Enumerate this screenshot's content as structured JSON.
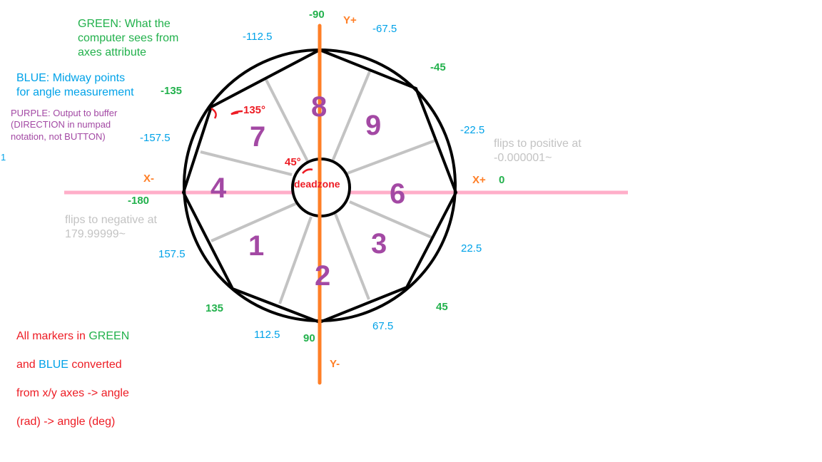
{
  "legend": {
    "green": "GREEN: What the\ncomputer sees from\naxes attribute",
    "blue": "BLUE: Midway points\nfor angle measurement",
    "purple": "PURPLE: Output to buffer\n(DIRECTION in numpad\nnotation, not BUTTON)",
    "stray": "1"
  },
  "flip_notes": {
    "positive": "flips to positive at\n-0.000001~",
    "negative": "flips to negative at\n179.99999~"
  },
  "footnote": {
    "line1_pre": "All markers  in ",
    "green_word": "GREEN",
    "line2_pre": "and ",
    "blue_word": "BLUE",
    "line2_post": " converted",
    "line3": "from x/y axes -> angle",
    "line4": "(rad) -> angle (deg)"
  },
  "axes": {
    "x_plus": "X+",
    "x_minus": "X-",
    "y_plus": "Y+",
    "y_minus": "Y-"
  },
  "green_markers": {
    "m90_top": "-90",
    "m45_top": "-45",
    "zero": "0",
    "p45_bottom": "45",
    "p90_bottom": "90",
    "p135_bottom": "135",
    "m180": "-180",
    "m135_top": "-135"
  },
  "blue_markers": {
    "m112_5": "-112.5",
    "m67_5": "-67.5",
    "m22_5": "-22.5",
    "p22_5": "22.5",
    "p67_5": "67.5",
    "p112_5": "112.5",
    "p157_5": "157.5",
    "m157_5": "-157.5"
  },
  "zones": {
    "n8": "8",
    "n9": "9",
    "n6": "6",
    "n3": "3",
    "n2": "2",
    "n1": "1",
    "n4": "4",
    "n7": "7"
  },
  "annotations": {
    "deadzone": "deadzone",
    "angle_45": "45°",
    "angle_135": "135°"
  },
  "colors": {
    "green": "#22b14c",
    "blue": "#00a2e8",
    "purple": "#a349a4",
    "orange": "#ff7f27",
    "pink": "#ffaec9",
    "red": "#ed1c24",
    "gray": "#c3c3c3"
  }
}
